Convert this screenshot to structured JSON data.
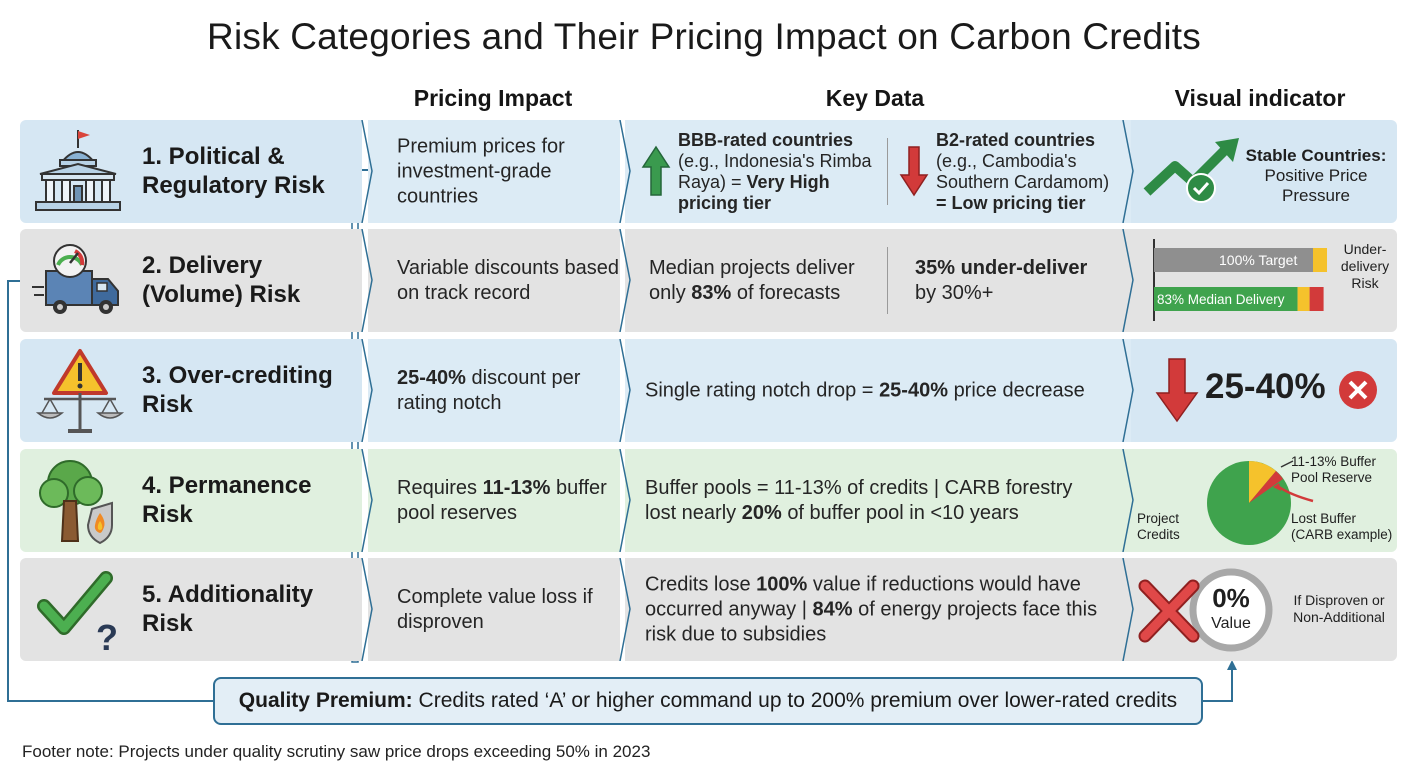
{
  "title": "Risk Categories and Their Pricing Impact on Carbon Credits",
  "columns": {
    "pricing_impact": "Pricing Impact",
    "key_data": "Key Data",
    "visual_indicator": "Visual indicator"
  },
  "rows": [
    {
      "risk_line1": "1. Political &",
      "risk_line2": "Regulatory Risk",
      "impact": "Premium prices for investment-grade countries",
      "key_left_bold": "BBB-rated countries",
      "key_left_text": "(e.g., Indonesia's Rimba Raya) =",
      "key_left_bold2": "Very High pricing tier",
      "key_right_bold": "B2-rated countries",
      "key_right_text": "(e.g., Cambodia's Southern Cardamom)",
      "key_right_bold2": "= Low pricing tier",
      "visual_bold": "Stable Countries:",
      "visual_text": "Positive Price Pressure"
    },
    {
      "risk_line1": "2. Delivery",
      "risk_line2": "(Volume) Risk",
      "impact": "Variable discounts based on track record",
      "key_left_pre": "Median projects deliver only",
      "key_left_bold": "83%",
      "key_left_post": "of forecasts",
      "key_right_bold": "35% under-deliver",
      "key_right_post": "by 30%+",
      "bar_target_label": "100% Target",
      "bar_median_label": "83% Median Delivery",
      "bar_target_value": 100,
      "bar_median_value": 83,
      "visual_text": "Under-delivery Risk"
    },
    {
      "risk_line1": "3. Over-crediting",
      "risk_line2": "Risk",
      "impact_bold": "25-40%",
      "impact_post": "discount per rating notch",
      "key_pre": "Single rating notch drop =",
      "key_bold": "25-40%",
      "key_post": "price decrease",
      "visual_big": "25-40%"
    },
    {
      "risk_line1": "4. Permanence",
      "risk_line2": "Risk",
      "impact_pre": "Requires",
      "impact_bold": "11-13%",
      "impact_post": "buffer pool reserves",
      "key_line1": "Buffer pools = 11-13% of credits | CARB forestry",
      "key_line2_pre": "lost nearly",
      "key_line2_bold": "20%",
      "key_line2_post": "of buffer pool in <10 years",
      "pie_label_buffer": "11-13% Buffer Pool Reserve",
      "pie_label_lost": "Lost Buffer (CARB example)",
      "pie_label_project": "Project Credits"
    },
    {
      "risk_line1": "5. Additionality",
      "risk_line2": "Risk",
      "impact": "Complete value loss if disproven",
      "key_l1_pre": "Credits lose",
      "key_l1_bold": "100%",
      "key_l1_post": "value if reductions would have",
      "key_l2_pre": "occurred anyway |",
      "key_l2_bold": "84%",
      "key_l2_post": "of energy projects face this",
      "key_l3": "risk due to subsidies",
      "visual_big": "0%",
      "visual_sub": "Value",
      "visual_text": "If Disproven or Non-Additional"
    }
  ],
  "quality": {
    "bold": "Quality Premium:",
    "text": "Credits rated ‘A’ or higher command up to 200% premium over lower-rated credits"
  },
  "footer": "Footer note: Projects under quality scrutiny saw price drops exceeding 50% in 2023",
  "icons": [
    "government-building-icon",
    "delivery-truck-icon",
    "warning-scale-icon",
    "tree-fire-shield-icon",
    "checkmark-question-icon",
    "trend-up-check-icon",
    "down-arrow-icon",
    "x-circle-icon",
    "pie-chart-icon",
    "red-x-icon"
  ],
  "colors": {
    "blue_row": "#d6e7f3",
    "gray_row": "#e3e3e3",
    "green_row": "#e0f0df",
    "accent_blue": "#2f6f95",
    "up_green": "#3a9a4e",
    "down_red": "#d23a3a",
    "yellow": "#f5c22c"
  }
}
